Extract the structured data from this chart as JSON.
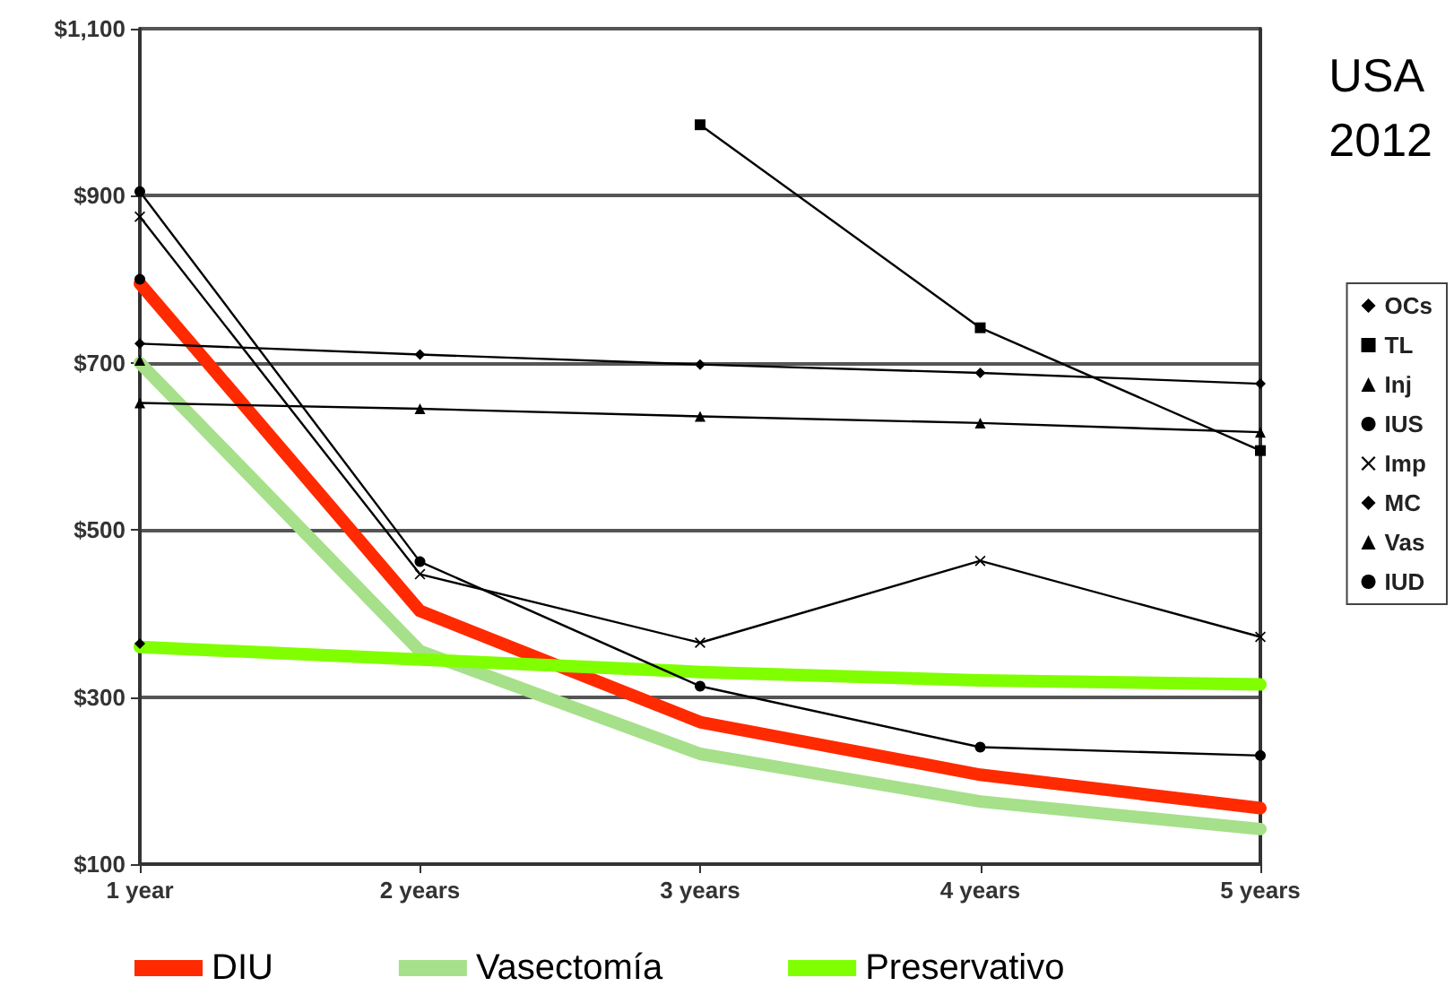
{
  "chart_data": {
    "type": "line",
    "categories": [
      "1 year",
      "2 years",
      "3 years",
      "4 years",
      "5 years"
    ],
    "ylim": [
      100,
      1100
    ],
    "yticks": [
      {
        "value": 100,
        "label": "$100"
      },
      {
        "value": 300,
        "label": "$300"
      },
      {
        "value": 500,
        "label": "$500"
      },
      {
        "value": 700,
        "label": "$700"
      },
      {
        "value": 900,
        "label": "$900"
      },
      {
        "value": 1100,
        "label": "$1,100"
      }
    ],
    "grid": "y",
    "legend": "right",
    "annotations": [
      "USA\n2012"
    ],
    "series": [
      {
        "name": "OCs",
        "color": "#000000",
        "marker": "diamond",
        "values": [
          723,
          710,
          698,
          688,
          675
        ]
      },
      {
        "name": "TL",
        "color": "#000000",
        "marker": "square",
        "values": [
          null,
          null,
          985,
          742,
          595
        ]
      },
      {
        "name": "Inj",
        "color": "#000000",
        "marker": "triangle",
        "values": [
          652,
          645,
          636,
          628,
          617
        ]
      },
      {
        "name": "IUS",
        "color": "#000000",
        "marker": "circle",
        "values": [
          905,
          462,
          313,
          240,
          230
        ]
      },
      {
        "name": "Imp",
        "color": "#000000",
        "marker": "cross",
        "values": [
          875,
          447,
          365,
          463,
          372
        ]
      },
      {
        "name": "MC",
        "color": "#000000",
        "marker": "diamond",
        "values": [
          364,
          null,
          null,
          null,
          null
        ]
      },
      {
        "name": "Vas",
        "color": "#000000",
        "marker": "triangle",
        "values": [
          703,
          null,
          null,
          null,
          null
        ]
      },
      {
        "name": "IUD",
        "color": "#000000",
        "marker": "circle",
        "values": [
          800,
          null,
          null,
          null,
          null
        ]
      },
      {
        "name": "DIU",
        "color": "#ff2a00",
        "marker": "none",
        "values": [
          795,
          403,
          270,
          207,
          167
        ]
      },
      {
        "name": "Vasectomía",
        "color": "#a6e08a",
        "marker": "none",
        "values": [
          700,
          355,
          232,
          175,
          142
        ]
      },
      {
        "name": "Preservativo",
        "color": "#80ff00",
        "marker": "none",
        "values": [
          360,
          345,
          330,
          320,
          315
        ]
      }
    ]
  }
}
